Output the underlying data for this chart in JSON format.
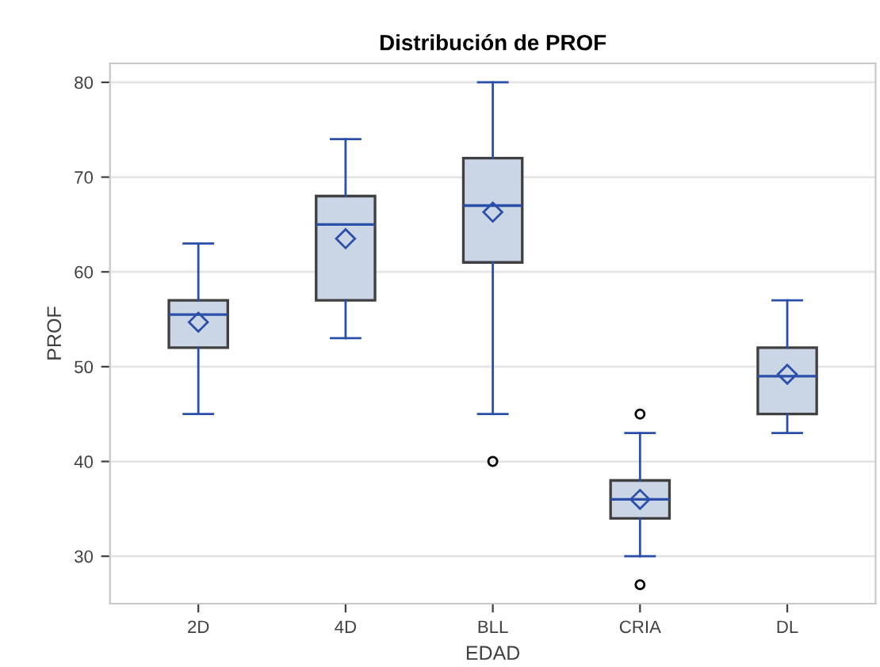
{
  "chart_data": {
    "type": "box",
    "title": "Distribución de PROF",
    "xlabel": "EDAD",
    "ylabel": "PROF",
    "categories": [
      "2D",
      "4D",
      "BLL",
      "CRIA",
      "DL"
    ],
    "boxes": [
      {
        "low": 45,
        "q1": 52,
        "median": 55.5,
        "q3": 57,
        "high": 63,
        "mean": 54.7
      },
      {
        "low": 53,
        "q1": 57,
        "median": 65,
        "q3": 68,
        "high": 74,
        "mean": 63.5
      },
      {
        "low": 45,
        "q1": 61,
        "median": 67,
        "q3": 72,
        "high": 80,
        "mean": 66.3,
        "outliers": [
          40
        ]
      },
      {
        "low": 30,
        "q1": 34,
        "median": 36,
        "q3": 38,
        "high": 43,
        "mean": 36,
        "outliers": [
          45,
          27
        ]
      },
      {
        "low": 43,
        "q1": 45,
        "median": 49,
        "q3": 52,
        "high": 57,
        "mean": 49.2
      }
    ],
    "color": "#cad5e5",
    "ylim": [
      25,
      82
    ],
    "yticks": [
      30,
      40,
      50,
      60,
      70,
      80
    ],
    "grid": "y",
    "marker": "diamond"
  }
}
